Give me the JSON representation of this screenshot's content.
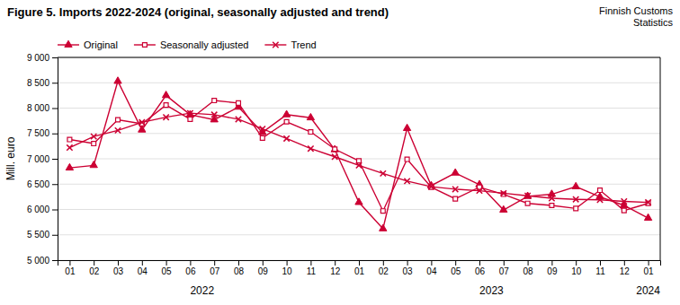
{
  "chart_data": {
    "type": "line",
    "title": "Figure 5. Imports  2022-2024  (original, seasonally adjusted and trend)",
    "subtitle": "Finnish Customs\nStatistics",
    "ylabel": "Mill. euro",
    "categories": [
      "01",
      "02",
      "03",
      "04",
      "05",
      "06",
      "07",
      "08",
      "09",
      "10",
      "11",
      "12",
      "01",
      "02",
      "03",
      "04",
      "05",
      "06",
      "07",
      "08",
      "09",
      "10",
      "11",
      "12",
      "01"
    ],
    "series": [
      {
        "name": "Original",
        "color": "#cc0033",
        "marker": "triangle",
        "values": [
          6820,
          6870,
          8530,
          7570,
          8250,
          7870,
          7770,
          8020,
          7520,
          7870,
          7810,
          7180,
          6140,
          5620,
          7600,
          6470,
          6720,
          6490,
          5990,
          6260,
          6300,
          6450,
          6250,
          6080,
          5830
        ]
      },
      {
        "name": "Seasonally adjusted",
        "color": "#cc0033",
        "marker": "square-open",
        "values": [
          7380,
          7300,
          7770,
          7690,
          8060,
          7780,
          8150,
          8100,
          7410,
          7730,
          7530,
          7190,
          6960,
          5970,
          6990,
          6440,
          6210,
          6440,
          6300,
          6120,
          6080,
          6020,
          6380,
          5980,
          6120
        ]
      },
      {
        "name": "Trend",
        "color": "#cc0033",
        "marker": "x",
        "values": [
          7220,
          7440,
          7560,
          7720,
          7820,
          7900,
          7870,
          7780,
          7590,
          7400,
          7200,
          7040,
          6870,
          6710,
          6560,
          6450,
          6400,
          6370,
          6320,
          6270,
          6220,
          6200,
          6190,
          6160,
          6140
        ]
      }
    ],
    "ylim": [
      5000,
      9000
    ],
    "yticks": [
      {
        "value": 5000,
        "label": "5 000"
      },
      {
        "value": 5500,
        "label": "5 500"
      },
      {
        "value": 6000,
        "label": "6 000"
      },
      {
        "value": 6500,
        "label": "6 500"
      },
      {
        "value": 7000,
        "label": "7 000"
      },
      {
        "value": 7500,
        "label": "7 500"
      },
      {
        "value": 8000,
        "label": "8 000"
      },
      {
        "value": 8500,
        "label": "8 500"
      },
      {
        "value": 9000,
        "label": "9 000"
      }
    ],
    "annotations": [
      {
        "text": "2022",
        "x": 5.5
      },
      {
        "text": "2023",
        "x": 17.5
      },
      {
        "text": "2024",
        "x": 24.0
      }
    ],
    "grid": true,
    "legend": "top"
  }
}
